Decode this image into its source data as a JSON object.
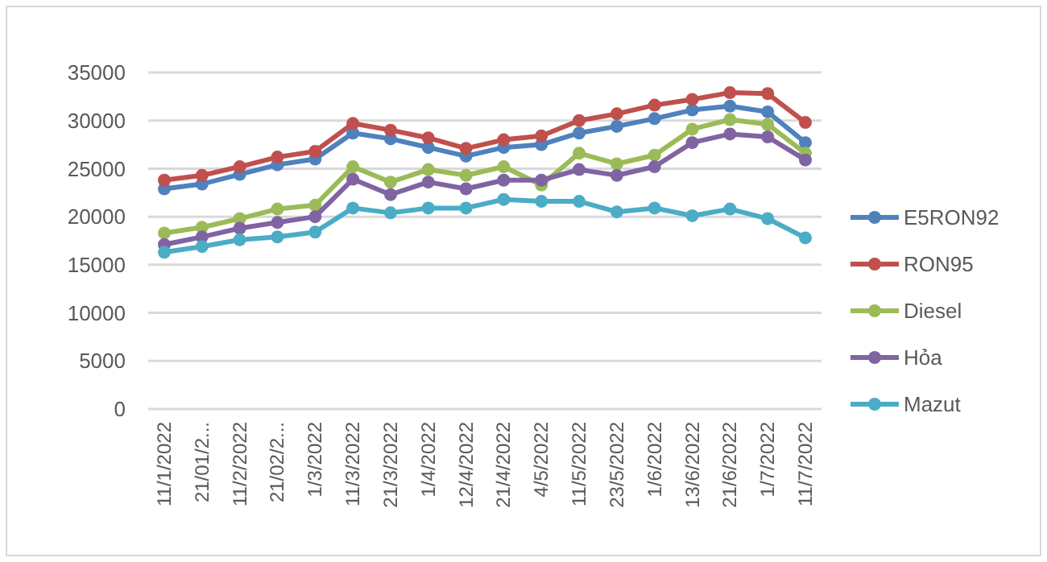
{
  "chart_data": {
    "type": "line",
    "categories": [
      "11/1/2022",
      "21/01/2...",
      "11/2/2022",
      "21/02/2...",
      "1/3/2022",
      "11/3/2022",
      "21/3/2022",
      "1/4/2022",
      "12/4/2022",
      "21/4/2022",
      "4/5/2022",
      "11/5/2022",
      "23/5/2022",
      "1/6/2022",
      "13/6/2022",
      "21/6/2022",
      "1/7/2022",
      "11/7/2022"
    ],
    "series": [
      {
        "name": "E5RON92",
        "color": "#4f81bd",
        "values": [
          22900,
          23400,
          24400,
          25400,
          26000,
          28700,
          28100,
          27200,
          26300,
          27200,
          27500,
          28700,
          29400,
          30200,
          31100,
          31500,
          30900,
          27700
        ]
      },
      {
        "name": "RON95",
        "color": "#c0504d",
        "values": [
          23800,
          24300,
          25200,
          26200,
          26800,
          29700,
          29000,
          28200,
          27100,
          28000,
          28400,
          30000,
          30700,
          31600,
          32200,
          32900,
          32800,
          29800
        ]
      },
      {
        "name": "Diesel",
        "color": "#9bbb59",
        "values": [
          18300,
          18900,
          19800,
          20800,
          21200,
          25200,
          23600,
          24900,
          24300,
          25200,
          23300,
          26600,
          25500,
          26400,
          29100,
          30100,
          29600,
          26600
        ]
      },
      {
        "name": "Hỏa",
        "color": "#8064a2",
        "values": [
          17100,
          17900,
          18800,
          19400,
          20000,
          23900,
          22300,
          23600,
          22900,
          23800,
          23800,
          24900,
          24300,
          25200,
          27700,
          28600,
          28300,
          25900
        ]
      },
      {
        "name": "Mazut",
        "color": "#4bacc6",
        "values": [
          16300,
          16900,
          17600,
          17900,
          18400,
          20900,
          20400,
          20900,
          20900,
          21800,
          21600,
          21600,
          20500,
          20900,
          20100,
          20800,
          19800,
          17800
        ]
      }
    ],
    "ylim": [
      0,
      35000
    ],
    "yticks": [
      0,
      5000,
      10000,
      15000,
      20000,
      25000,
      30000,
      35000
    ],
    "grid": "y",
    "legend": "right",
    "marker": "circle",
    "line_style": "solid"
  }
}
